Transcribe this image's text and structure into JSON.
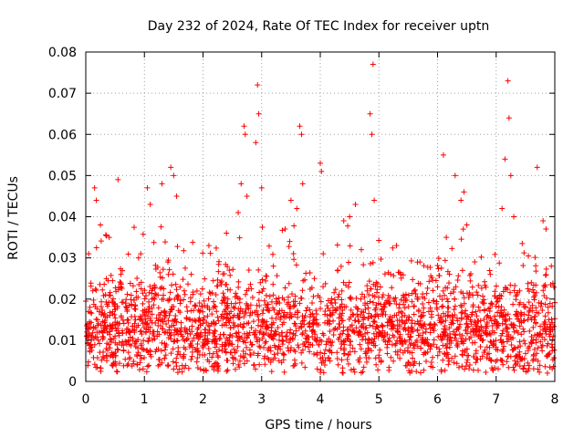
{
  "chart_data": {
    "type": "scatter",
    "title": "Day 232 of 2024, Rate Of TEC Index for receiver uptn",
    "xlabel": "GPS time / hours",
    "ylabel": "ROTI / TECUs",
    "xlim": [
      0,
      8
    ],
    "ylim": [
      0,
      0.08
    ],
    "x_ticks": [
      0,
      1,
      2,
      3,
      4,
      5,
      6,
      7,
      8
    ],
    "x_tick_labels": [
      "0",
      "1",
      "2",
      "3",
      "4",
      "5",
      "6",
      "7",
      "8"
    ],
    "y_ticks": [
      0,
      0.01,
      0.02,
      0.03,
      0.04,
      0.05,
      0.06,
      0.07,
      0.08
    ],
    "y_tick_labels": [
      "0",
      "0.01",
      "0.02",
      "0.03",
      "0.04",
      "0.05",
      "0.06",
      "0.07",
      "0.08"
    ],
    "grid": true,
    "marker": "+",
    "color": "#ff0000",
    "series": [
      {
        "name": "ROTI",
        "points": [
          [
            0.02,
            0.012
          ],
          [
            0.05,
            0.031
          ],
          [
            0.08,
            0.009
          ],
          [
            0.12,
            0.022
          ],
          [
            0.15,
            0.047
          ],
          [
            0.18,
            0.044
          ],
          [
            0.2,
            0.015
          ],
          [
            0.25,
            0.038
          ],
          [
            0.3,
            0.013
          ],
          [
            0.35,
            0.008
          ],
          [
            0.4,
            0.035
          ],
          [
            0.45,
            0.004
          ],
          [
            0.5,
            0.011
          ],
          [
            0.55,
            0.049
          ],
          [
            0.6,
            0.026
          ],
          [
            0.7,
            0.018
          ],
          [
            0.8,
            0.01
          ],
          [
            0.9,
            0.03
          ],
          [
            1.0,
            0.016
          ],
          [
            1.05,
            0.047
          ],
          [
            1.1,
            0.043
          ],
          [
            1.2,
            0.021
          ],
          [
            1.3,
            0.048
          ],
          [
            1.4,
            0.029
          ],
          [
            1.45,
            0.052
          ],
          [
            1.5,
            0.05
          ],
          [
            1.55,
            0.045
          ],
          [
            1.6,
            0.003
          ],
          [
            1.7,
            0.012
          ],
          [
            1.8,
            0.026
          ],
          [
            1.9,
            0.008
          ],
          [
            2.0,
            0.015
          ],
          [
            2.1,
            0.033
          ],
          [
            2.2,
            0.011
          ],
          [
            2.3,
            0.024
          ],
          [
            2.4,
            0.036
          ],
          [
            2.5,
            0.009
          ],
          [
            2.6,
            0.041
          ],
          [
            2.65,
            0.048
          ],
          [
            2.7,
            0.062
          ],
          [
            2.72,
            0.06
          ],
          [
            2.75,
            0.045
          ],
          [
            2.8,
            0.016
          ],
          [
            2.9,
            0.058
          ],
          [
            2.93,
            0.072
          ],
          [
            2.95,
            0.065
          ],
          [
            3.0,
            0.047
          ],
          [
            3.1,
            0.013
          ],
          [
            3.2,
            0.028
          ],
          [
            3.3,
            0.01
          ],
          [
            3.4,
            0.037
          ],
          [
            3.5,
            0.044
          ],
          [
            3.6,
            0.042
          ],
          [
            3.65,
            0.062
          ],
          [
            3.68,
            0.06
          ],
          [
            3.7,
            0.048
          ],
          [
            3.8,
            0.014
          ],
          [
            3.9,
            0.025
          ],
          [
            4.0,
            0.053
          ],
          [
            4.02,
            0.051
          ],
          [
            4.05,
            0.031
          ],
          [
            4.1,
            0.009
          ],
          [
            4.2,
            0.019
          ],
          [
            4.3,
            0.027
          ],
          [
            4.4,
            0.039
          ],
          [
            4.5,
            0.04
          ],
          [
            4.6,
            0.043
          ],
          [
            4.7,
            0.032
          ],
          [
            4.8,
            0.022
          ],
          [
            4.85,
            0.065
          ],
          [
            4.88,
            0.06
          ],
          [
            4.9,
            0.077
          ],
          [
            4.92,
            0.044
          ],
          [
            5.0,
            0.012
          ],
          [
            5.1,
            0.018
          ],
          [
            5.2,
            0.026
          ],
          [
            5.3,
            0.033
          ],
          [
            5.4,
            0.01
          ],
          [
            5.5,
            0.015
          ],
          [
            5.6,
            0.022
          ],
          [
            5.7,
            0.029
          ],
          [
            5.8,
            0.012
          ],
          [
            5.9,
            0.017
          ],
          [
            6.0,
            0.023
          ],
          [
            6.1,
            0.055
          ],
          [
            6.15,
            0.035
          ],
          [
            6.2,
            0.013
          ],
          [
            6.3,
            0.05
          ],
          [
            6.4,
            0.044
          ],
          [
            6.45,
            0.046
          ],
          [
            6.5,
            0.038
          ],
          [
            6.6,
            0.021
          ],
          [
            6.7,
            0.011
          ],
          [
            6.8,
            0.019
          ],
          [
            6.9,
            0.026
          ],
          [
            7.0,
            0.014
          ],
          [
            7.1,
            0.042
          ],
          [
            7.15,
            0.054
          ],
          [
            7.2,
            0.073
          ],
          [
            7.22,
            0.064
          ],
          [
            7.25,
            0.05
          ],
          [
            7.3,
            0.04
          ],
          [
            7.4,
            0.022
          ],
          [
            7.5,
            0.018
          ],
          [
            7.6,
            0.024
          ],
          [
            7.7,
            0.052
          ],
          [
            7.8,
            0.039
          ],
          [
            7.85,
            0.037
          ],
          [
            7.9,
            0.015
          ],
          [
            7.95,
            0.009
          ]
        ],
        "baseline_density": {
          "x_range": [
            0,
            8
          ],
          "typical_range": [
            0.005,
            0.02
          ],
          "median": 0.012,
          "sample_count": 2400,
          "seed": 232
        }
      }
    ]
  }
}
